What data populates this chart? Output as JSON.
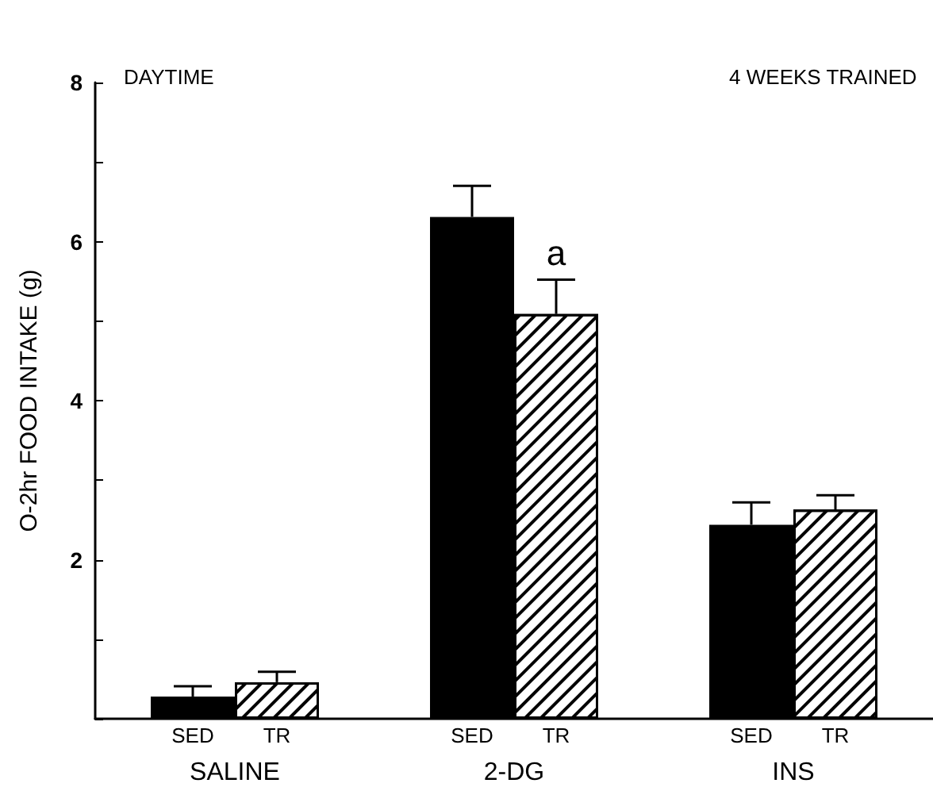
{
  "chart_data": {
    "type": "bar",
    "ylabel": "O-2hr FOOD INTAKE (g)",
    "categories": [
      "SALINE",
      "2-DG",
      "INS"
    ],
    "series": [
      {
        "name": "SED",
        "color": "#000000",
        "values": [
          0.28,
          6.31,
          2.44
        ],
        "errors": [
          [
            0.28,
            0.41
          ],
          [
            6.31,
            6.7
          ],
          [
            2.44,
            2.72
          ]
        ]
      },
      {
        "name": "TR",
        "color": "#ffffff",
        "values": [
          0.46,
          5.09,
          2.63
        ],
        "errors": [
          [
            0.46,
            0.59
          ],
          [
            5.09,
            5.52
          ],
          [
            2.63,
            2.81
          ]
        ]
      }
    ],
    "ylim": [
      0,
      8
    ],
    "yticks": [
      {
        "value": 0,
        "label": null
      },
      {
        "value": 1,
        "label": null
      },
      2,
      {
        "value": 3,
        "label": null
      },
      4,
      {
        "value": 5,
        "label": null
      },
      6,
      {
        "value": 7,
        "label": null
      },
      8
    ],
    "annotations": [
      "DAYTIME",
      "4 WEEKS TRAINED",
      {
        "text": "a",
        "x": "2-DG",
        "y": 5.52
      }
    ],
    "grid": false,
    "legend": false
  }
}
